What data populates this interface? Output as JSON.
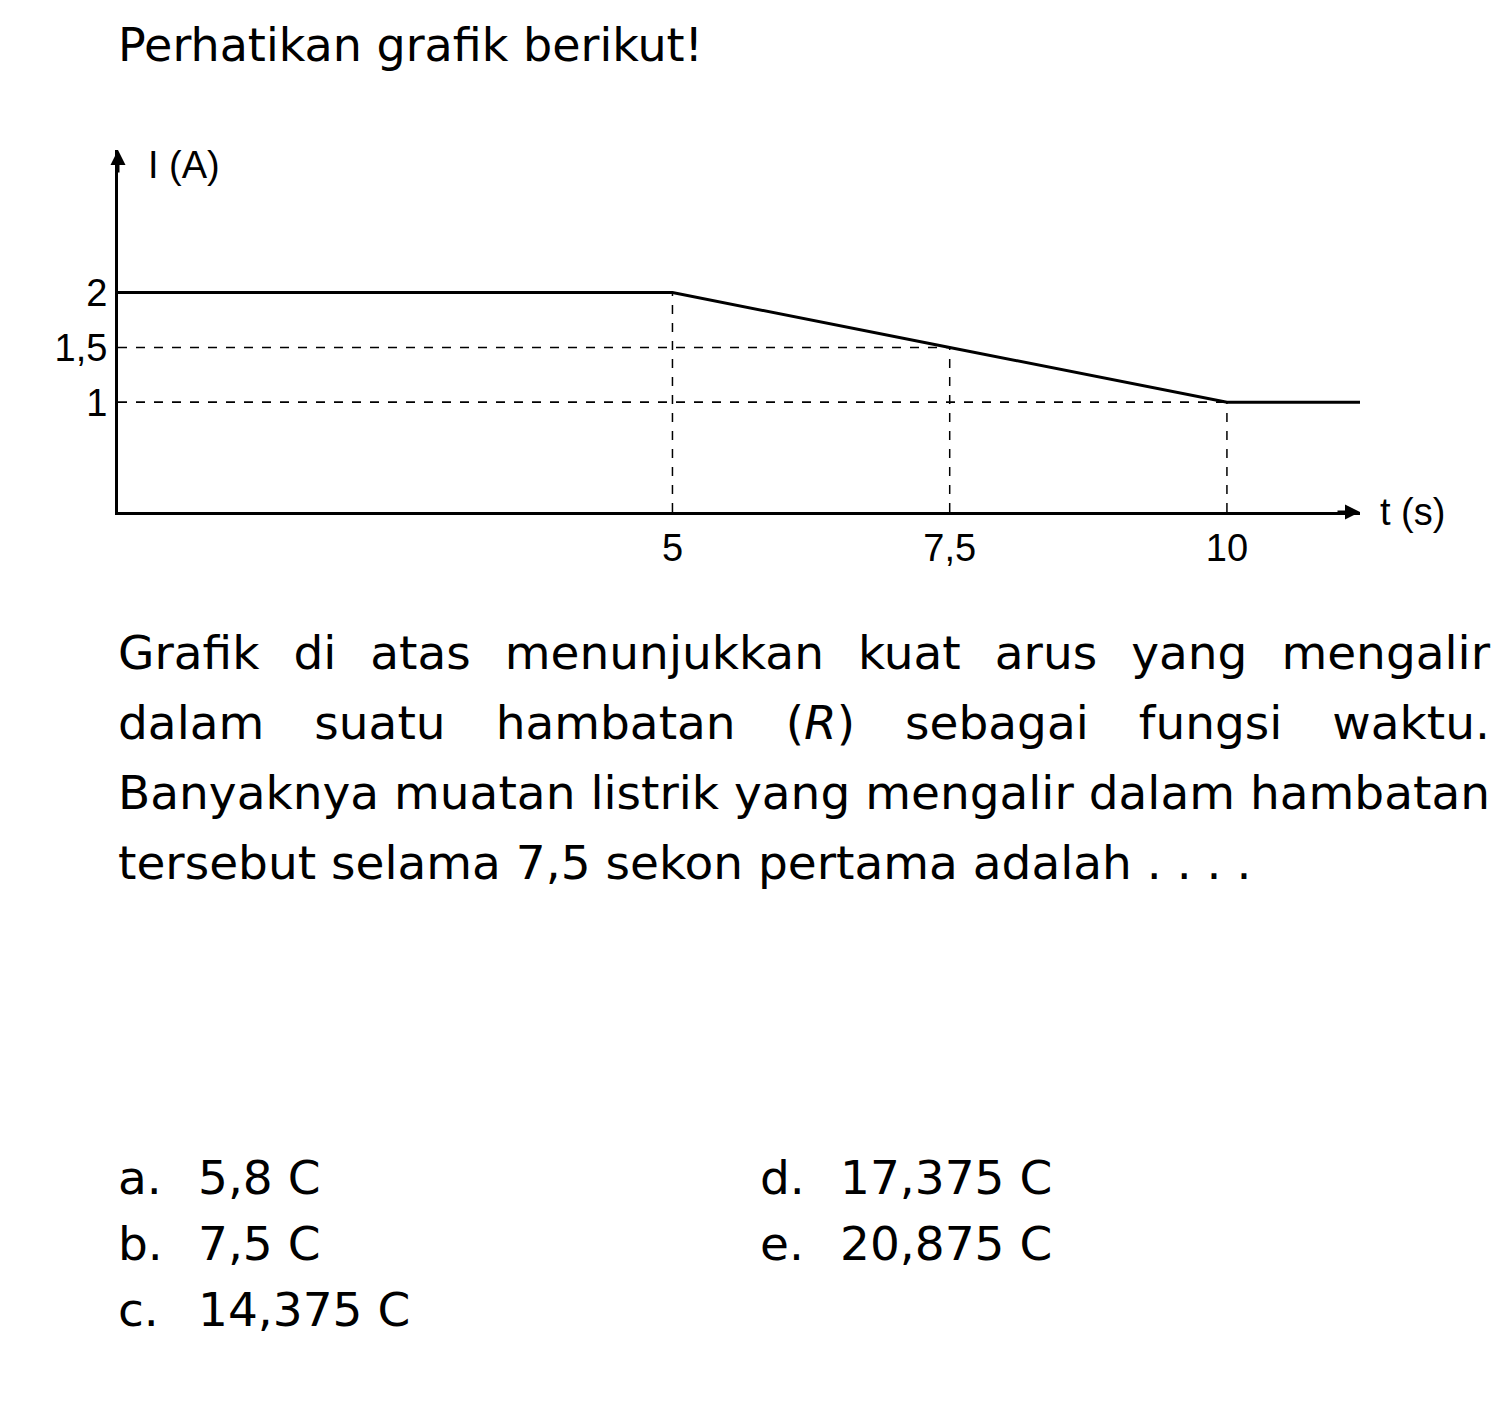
{
  "intro": "Perhatikan grafik berikut!",
  "chart_data": {
    "type": "line",
    "x": [
      0,
      5,
      7.5,
      10,
      11.2
    ],
    "values": [
      2,
      2,
      1.5,
      1,
      1
    ],
    "color": "#000000",
    "xlabel": "t (s)",
    "ylabel": "I (A)",
    "xlim": [
      0,
      11.2
    ],
    "ylim": [
      0,
      3.3
    ],
    "xticks": [
      5,
      {
        "value": 7.5,
        "label": "7,5"
      },
      10
    ],
    "yticks": [
      1,
      {
        "value": 1.5,
        "label": "1,5"
      },
      2
    ],
    "grid": false
  },
  "question": [
    {
      "text": "Grafik di atas menunjukkan kuat arus yang mengalir dalam suatu hambatan ("
    },
    {
      "text": "R",
      "italic": true
    },
    {
      "text": ") sebagai fungsi waktu. Banyaknya muatan listrik yang mengalir dalam hambatan tersebut selama 7,5 sekon pertama adalah . . . ."
    }
  ],
  "options": [
    {
      "letter": "a.",
      "text": "5,8 C"
    },
    {
      "letter": "b.",
      "text": "7,5 C"
    },
    {
      "letter": "c.",
      "text": "14,375 C"
    },
    {
      "letter": "d.",
      "text": "17,375 C"
    },
    {
      "letter": "e.",
      "text": "20,875 C"
    }
  ]
}
